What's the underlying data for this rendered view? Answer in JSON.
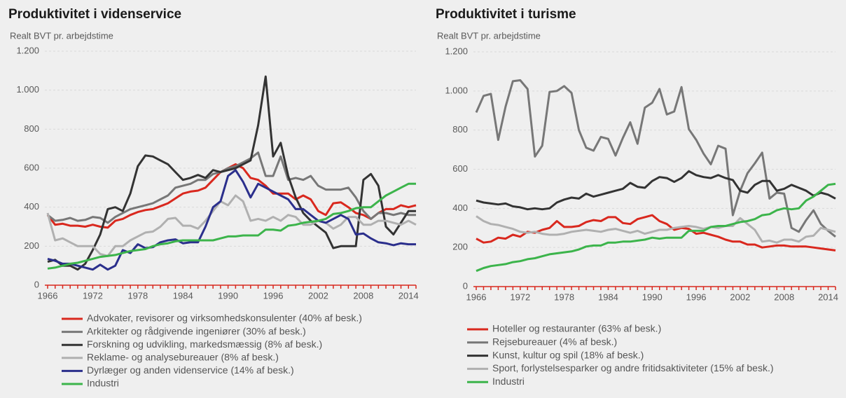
{
  "chart_data": [
    {
      "type": "line",
      "title": "Produktivitet i videnservice",
      "y_label": "Realt BVT pr. arbejdstime",
      "x": [
        1966,
        1967,
        1968,
        1969,
        1970,
        1971,
        1972,
        1973,
        1974,
        1975,
        1976,
        1977,
        1978,
        1979,
        1980,
        1981,
        1982,
        1983,
        1984,
        1985,
        1986,
        1987,
        1988,
        1989,
        1990,
        1991,
        1992,
        1993,
        1994,
        1995,
        1996,
        1997,
        1998,
        1999,
        2000,
        2001,
        2002,
        2003,
        2004,
        2005,
        2006,
        2007,
        2008,
        2009,
        2010,
        2011,
        2012,
        2013,
        2014,
        2015
      ],
      "xlim": [
        1966,
        2015
      ],
      "xticks": [
        1966,
        1972,
        1978,
        1984,
        1990,
        1996,
        2002,
        2008,
        2014
      ],
      "ylim": [
        0,
        1200
      ],
      "yticks": [
        0,
        200,
        400,
        600,
        800,
        {
          "value": 1000,
          "label": "1.000"
        },
        {
          "value": 1200,
          "label": "1.200"
        }
      ],
      "grid": true,
      "series": [
        {
          "name": "Advokater, revisorer og virksomhedskonsulenter (40% af besk.)",
          "color": "#d9281e",
          "values": [
            360,
            310,
            315,
            305,
            305,
            300,
            310,
            300,
            295,
            330,
            340,
            360,
            375,
            385,
            390,
            405,
            420,
            445,
            470,
            480,
            485,
            500,
            540,
            580,
            600,
            620,
            600,
            550,
            540,
            510,
            470,
            470,
            470,
            440,
            460,
            440,
            380,
            360,
            420,
            425,
            400,
            370,
            360,
            340,
            370,
            390,
            390,
            410,
            400,
            410
          ]
        },
        {
          "name": "Arkitekter og rådgivende ingeniører (30% af besk.)",
          "color": "#777777",
          "values": [
            360,
            330,
            335,
            345,
            330,
            335,
            350,
            345,
            320,
            350,
            370,
            390,
            400,
            410,
            420,
            440,
            460,
            500,
            510,
            520,
            540,
            540,
            570,
            580,
            600,
            610,
            630,
            650,
            680,
            560,
            560,
            660,
            540,
            550,
            540,
            560,
            510,
            490,
            490,
            490,
            500,
            450,
            380,
            340,
            370,
            370,
            360,
            370,
            360,
            360
          ]
        },
        {
          "name": "Forskning og udvikling, markedsmæssig (8% af besk.)",
          "color": "#333333",
          "values": [
            120,
            130,
            100,
            100,
            80,
            110,
            180,
            260,
            390,
            400,
            380,
            470,
            610,
            665,
            660,
            640,
            620,
            580,
            540,
            550,
            565,
            550,
            590,
            580,
            590,
            600,
            620,
            640,
            820,
            1070,
            660,
            730,
            560,
            450,
            370,
            330,
            300,
            270,
            190,
            200,
            200,
            200,
            540,
            570,
            510,
            300,
            260,
            320,
            380,
            380
          ]
        },
        {
          "name": "Reklame- og analysebureauer (8% af besk.)",
          "color": "#b0b0b0",
          "values": [
            370,
            230,
            240,
            220,
            200,
            200,
            200,
            160,
            150,
            200,
            200,
            230,
            250,
            270,
            275,
            300,
            340,
            345,
            305,
            305,
            290,
            330,
            380,
            430,
            410,
            460,
            430,
            330,
            340,
            330,
            350,
            330,
            360,
            350,
            310,
            310,
            330,
            320,
            290,
            310,
            350,
            350,
            310,
            310,
            330,
            330,
            320,
            310,
            330,
            310
          ]
        },
        {
          "name": "Dyrlæger og anden videnservice (14% af besk.)",
          "color": "#2b2f8c",
          "values": [
            135,
            125,
            110,
            110,
            100,
            90,
            80,
            105,
            80,
            100,
            180,
            165,
            210,
            190,
            195,
            220,
            230,
            235,
            215,
            220,
            220,
            300,
            400,
            430,
            560,
            590,
            530,
            450,
            520,
            500,
            480,
            460,
            440,
            390,
            390,
            360,
            330,
            320,
            340,
            360,
            340,
            260,
            265,
            240,
            220,
            215,
            205,
            215,
            210,
            210
          ]
        },
        {
          "name": "Industri",
          "color": "#3cb44b",
          "values": [
            85,
            90,
            100,
            110,
            115,
            125,
            135,
            145,
            150,
            155,
            165,
            175,
            180,
            185,
            200,
            210,
            215,
            225,
            230,
            230,
            230,
            230,
            230,
            240,
            250,
            250,
            255,
            255,
            255,
            285,
            285,
            280,
            305,
            310,
            320,
            325,
            330,
            340,
            365,
            370,
            380,
            395,
            400,
            400,
            430,
            460,
            480,
            500,
            520,
            520
          ]
        }
      ]
    },
    {
      "type": "line",
      "title": "Produktivitet i turisme",
      "y_label": "Realt BVT pr. arbejdstime",
      "x": [
        1966,
        1967,
        1968,
        1969,
        1970,
        1971,
        1972,
        1973,
        1974,
        1975,
        1976,
        1977,
        1978,
        1979,
        1980,
        1981,
        1982,
        1983,
        1984,
        1985,
        1986,
        1987,
        1988,
        1989,
        1990,
        1991,
        1992,
        1993,
        1994,
        1995,
        1996,
        1997,
        1998,
        1999,
        2000,
        2001,
        2002,
        2003,
        2004,
        2005,
        2006,
        2007,
        2008,
        2009,
        2010,
        2011,
        2012,
        2013,
        2014,
        2015
      ],
      "xlim": [
        1966,
        2015
      ],
      "xticks": [
        1966,
        1972,
        1978,
        1984,
        1990,
        1996,
        2002,
        2008,
        2014
      ],
      "ylim": [
        0,
        1200
      ],
      "yticks": [
        0,
        200,
        400,
        600,
        800,
        {
          "value": 1000,
          "label": "1.000"
        },
        {
          "value": 1200,
          "label": "1.200"
        }
      ],
      "grid": true,
      "series": [
        {
          "name": "Hoteller og restauranter  (63% af besk.)",
          "color": "#d9281e",
          "values": [
            245,
            225,
            230,
            250,
            245,
            265,
            255,
            280,
            275,
            290,
            300,
            335,
            305,
            305,
            310,
            330,
            340,
            335,
            355,
            355,
            325,
            320,
            345,
            355,
            365,
            335,
            320,
            290,
            300,
            295,
            270,
            275,
            265,
            255,
            240,
            230,
            230,
            215,
            215,
            200,
            205,
            210,
            210,
            205,
            205,
            205,
            200,
            195,
            190,
            185
          ]
        },
        {
          "name": "Rejsebureauer (4% af besk.)",
          "color": "#777777",
          "values": [
            890,
            975,
            985,
            750,
            920,
            1050,
            1055,
            1010,
            665,
            720,
            995,
            1000,
            1025,
            990,
            800,
            710,
            695,
            765,
            755,
            670,
            760,
            840,
            730,
            915,
            940,
            1010,
            880,
            895,
            1020,
            805,
            750,
            680,
            625,
            720,
            705,
            365,
            490,
            580,
            630,
            685,
            450,
            480,
            475,
            300,
            280,
            340,
            390,
            320,
            285,
            255
          ]
        },
        {
          "name": "Kunst, kultur og spil (18% af besk.)",
          "color": "#333333",
          "values": [
            440,
            430,
            425,
            420,
            425,
            410,
            405,
            395,
            400,
            395,
            400,
            430,
            445,
            455,
            450,
            475,
            460,
            470,
            480,
            490,
            500,
            530,
            510,
            505,
            540,
            560,
            555,
            535,
            555,
            590,
            570,
            560,
            555,
            570,
            555,
            545,
            490,
            480,
            520,
            540,
            540,
            490,
            500,
            520,
            505,
            490,
            465,
            480,
            470,
            450
          ]
        },
        {
          "name": "Sport, forlystelsesparker og andre fritidsaktiviteter  (15% af besk.)",
          "color": "#b0b0b0",
          "values": [
            360,
            335,
            320,
            315,
            305,
            295,
            280,
            275,
            280,
            270,
            265,
            265,
            270,
            280,
            285,
            290,
            285,
            280,
            290,
            295,
            285,
            275,
            285,
            270,
            280,
            290,
            290,
            300,
            305,
            310,
            305,
            295,
            305,
            300,
            310,
            310,
            350,
            320,
            290,
            230,
            235,
            225,
            240,
            240,
            230,
            255,
            260,
            300,
            290,
            280
          ]
        },
        {
          "name": "Industri",
          "color": "#3cb44b",
          "values": [
            80,
            95,
            105,
            110,
            115,
            125,
            130,
            140,
            145,
            155,
            165,
            170,
            175,
            180,
            190,
            205,
            210,
            210,
            225,
            225,
            230,
            230,
            235,
            240,
            250,
            245,
            250,
            250,
            250,
            285,
            285,
            285,
            305,
            310,
            310,
            320,
            330,
            335,
            345,
            365,
            370,
            390,
            400,
            395,
            400,
            440,
            460,
            490,
            520,
            525
          ]
        }
      ]
    }
  ]
}
